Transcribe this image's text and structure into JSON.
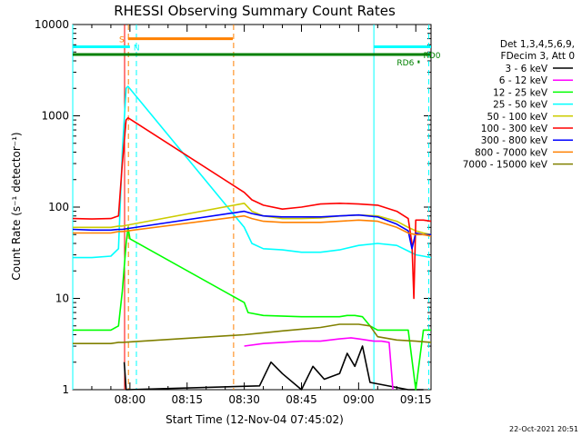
{
  "chart_data": {
    "type": "line",
    "title": "RHESSI Observing Summary Count Rates",
    "xlabel": "Start Time (12-Nov-04 07:45:02)",
    "ylabel": "Count Rate (s⁻¹ detector⁻¹)",
    "ylog": true,
    "ylim": [
      1,
      10000
    ],
    "xlim_minutes": [
      0,
      94
    ],
    "x_ticks": [
      {
        "m": 15,
        "label": "08:00"
      },
      {
        "m": 30,
        "label": "08:15"
      },
      {
        "m": 45,
        "label": "08:30"
      },
      {
        "m": 60,
        "label": "08:45"
      },
      {
        "m": 75,
        "label": "09:00"
      },
      {
        "m": 90,
        "label": "09:15"
      }
    ],
    "y_ticks": [
      {
        "v": 1,
        "label": "1"
      },
      {
        "v": 10,
        "label": "10"
      },
      {
        "v": 100,
        "label": "100"
      },
      {
        "v": 1000,
        "label": "1000"
      },
      {
        "v": 10000,
        "label": "10000"
      }
    ],
    "legend_header": [
      "Det 1,3,4,5,6,9,",
      "FDecim 3, Att 0"
    ],
    "legend_position": "right",
    "series": [
      {
        "name": "3 - 6 keV",
        "color": "#000000",
        "x": [
          13.5,
          14,
          14.2,
          49,
          52,
          55,
          60,
          63,
          66,
          70,
          72,
          74,
          76,
          78,
          88,
          90,
          92
        ],
        "y": [
          2,
          0.8,
          0.8,
          1.1,
          2,
          1.5,
          1,
          1.8,
          1.3,
          1.5,
          2.5,
          1.8,
          3,
          1.2,
          1,
          1,
          1
        ]
      },
      {
        "name": "6 - 12 keV",
        "color": "#ff00ff",
        "x": [
          45,
          50,
          55,
          60,
          65,
          70,
          73,
          75,
          77,
          79,
          81,
          83,
          84
        ],
        "y": [
          3,
          3.2,
          3.3,
          3.4,
          3.4,
          3.6,
          3.7,
          3.6,
          3.5,
          3.4,
          3.4,
          3.3,
          1
        ]
      },
      {
        "name": "12 - 25 keV",
        "color": "#00ff00",
        "x": [
          0,
          5,
          10,
          12,
          13,
          14,
          14.5,
          15,
          45,
          46,
          50,
          60,
          70,
          72,
          74,
          76,
          78,
          80,
          82,
          84,
          86,
          88,
          90,
          92,
          94
        ],
        "y": [
          4.5,
          4.5,
          4.5,
          5,
          12,
          40,
          60,
          45,
          9,
          7,
          6.5,
          6.3,
          6.3,
          6.5,
          6.5,
          6.3,
          5,
          4.5,
          4.5,
          4.5,
          4.5,
          4.5,
          1,
          4.5,
          4.5
        ]
      },
      {
        "name": "25 - 50 keV",
        "color": "#00ffff",
        "x": [
          0,
          5,
          10,
          12,
          13,
          14,
          14.5,
          45,
          47,
          50,
          55,
          60,
          65,
          70,
          75,
          80,
          85,
          88,
          90,
          92,
          94
        ],
        "y": [
          28,
          28,
          29,
          35,
          400,
          2000,
          2100,
          60,
          40,
          35,
          34,
          32,
          32,
          34,
          38,
          40,
          38,
          33,
          30,
          29,
          28
        ]
      },
      {
        "name": "50 - 100 keV",
        "color": "#cccc00",
        "x": [
          0,
          5,
          10,
          12,
          13,
          45,
          47,
          50,
          55,
          60,
          65,
          70,
          75,
          80,
          85,
          88,
          90,
          92,
          94
        ],
        "y": [
          60,
          60,
          60,
          62,
          62,
          110,
          90,
          80,
          75,
          75,
          76,
          80,
          82,
          80,
          70,
          60,
          55,
          52,
          50
        ]
      },
      {
        "name": "100 - 300 keV",
        "color": "#ff0000",
        "x": [
          0,
          5,
          10,
          12,
          13,
          14,
          14.5,
          45,
          47,
          50,
          55,
          60,
          65,
          70,
          75,
          80,
          85,
          88,
          89,
          89.5,
          90,
          92,
          94
        ],
        "y": [
          75,
          74,
          75,
          80,
          300,
          900,
          950,
          145,
          120,
          105,
          95,
          100,
          108,
          110,
          108,
          105,
          90,
          75,
          40,
          10,
          72,
          72,
          70
        ]
      },
      {
        "name": "300 - 800 keV",
        "color": "#0000ff",
        "x": [
          0,
          5,
          10,
          12,
          13,
          45,
          47,
          50,
          55,
          60,
          65,
          70,
          75,
          80,
          85,
          88,
          89,
          90,
          92,
          94
        ],
        "y": [
          57,
          56,
          56,
          57,
          57,
          90,
          85,
          80,
          78,
          78,
          78,
          80,
          82,
          78,
          65,
          55,
          35,
          52,
          50,
          50
        ]
      },
      {
        "name": "800 - 7000 keV",
        "color": "#ff8000",
        "x": [
          0,
          5,
          10,
          12,
          13,
          45,
          47,
          50,
          55,
          60,
          65,
          70,
          75,
          80,
          85,
          88,
          90,
          92,
          94
        ],
        "y": [
          52,
          52,
          52,
          54,
          54,
          80,
          75,
          70,
          68,
          68,
          68,
          70,
          72,
          70,
          60,
          52,
          50,
          50,
          48
        ]
      },
      {
        "name": "7000 - 15000 keV",
        "color": "#808000",
        "x": [
          0,
          5,
          10,
          12,
          13,
          45,
          50,
          55,
          60,
          65,
          70,
          75,
          78,
          80,
          85,
          90,
          94
        ],
        "y": [
          3.2,
          3.2,
          3.2,
          3.3,
          3.3,
          4,
          4.2,
          4.4,
          4.6,
          4.8,
          5.2,
          5.2,
          5,
          3.8,
          3.5,
          3.4,
          3.3
        ]
      }
    ],
    "state_bars": [
      {
        "label": "S",
        "color": "#ff8000",
        "x0": 14.5,
        "x1": 42,
        "y": 7000
      },
      {
        "label": "N",
        "color": "#00ffff",
        "x0": 0,
        "x1": 15,
        "y": 5700
      },
      {
        "label": "",
        "color": "#00ffff",
        "x0": 79,
        "x1": 94,
        "y": 5700
      },
      {
        "label": "",
        "color": "#008000",
        "x0": 0,
        "x1": 94,
        "y": 4700
      },
      {
        "label": "RD0",
        "color": "#008000",
        "x0": 91.5,
        "x1": 94,
        "y": 4700
      },
      {
        "label": "RD6",
        "color": "#008000",
        "x0": 90.5,
        "x1": 91,
        "y": 3900
      }
    ],
    "vlines": [
      {
        "x": 0,
        "color": "#00ffff",
        "style": "solid"
      },
      {
        "x": 13.6,
        "color": "#ff0000",
        "style": "solid"
      },
      {
        "x": 14.6,
        "color": "#ff8000",
        "style": "dashed"
      },
      {
        "x": 16.7,
        "color": "#00ffff",
        "style": "dashed"
      },
      {
        "x": 42.2,
        "color": "#ff8000",
        "style": "dashed"
      },
      {
        "x": 79.0,
        "color": "#00ffff",
        "style": "solid"
      },
      {
        "x": 93.4,
        "color": "#00ffff",
        "style": "dashed"
      }
    ]
  },
  "footer": {
    "timestamp": "22-Oct-2021 20:51"
  }
}
